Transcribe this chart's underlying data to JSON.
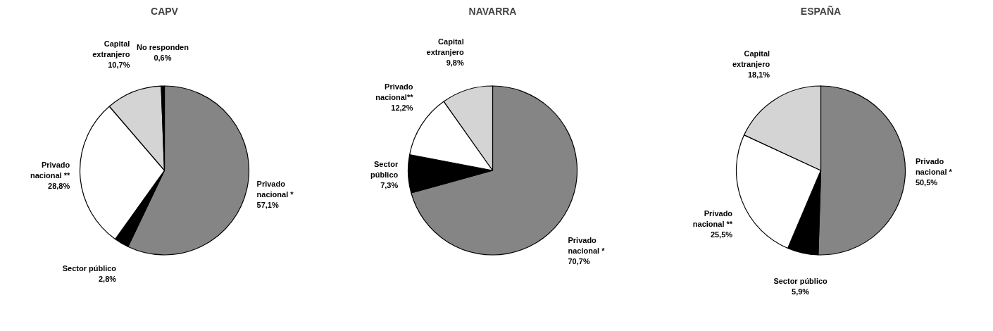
{
  "chart_data": [
    {
      "type": "pie",
      "title": "CAPV",
      "categories": [
        "Privado\nnacional *",
        "Sector público",
        "Privado\nnacional **",
        "Capital\nextranjero",
        "No responden"
      ],
      "values": [
        57.1,
        2.8,
        28.8,
        10.7,
        0.6
      ],
      "colors": [
        "#858585",
        "#000000",
        "#ffffff",
        "#d4d4d4",
        "#000000"
      ],
      "value_labels": [
        "57,1%",
        "2,8%",
        "28,8%",
        "10,7%",
        "0,6%"
      ]
    },
    {
      "type": "pie",
      "title": "NAVARRA",
      "categories": [
        "Privado\nnacional *",
        "Sector\npúblico",
        "Privado\nnacional**",
        "Capital\nextranjero"
      ],
      "values": [
        70.7,
        7.3,
        12.2,
        9.8
      ],
      "colors": [
        "#858585",
        "#000000",
        "#ffffff",
        "#d4d4d4"
      ],
      "value_labels": [
        "70,7%",
        "7,3%",
        "12,2%",
        "9,8%"
      ]
    },
    {
      "type": "pie",
      "title": "ESPAÑA",
      "categories": [
        "Privado\nnacional *",
        "Sector público",
        "Privado\nnacional **",
        "Capital\nextranjero"
      ],
      "values": [
        50.5,
        5.9,
        25.5,
        18.1
      ],
      "colors": [
        "#858585",
        "#000000",
        "#ffffff",
        "#d4d4d4"
      ],
      "value_labels": [
        "50,5%",
        "5,9%",
        "25,5%",
        "18,1%"
      ]
    }
  ]
}
